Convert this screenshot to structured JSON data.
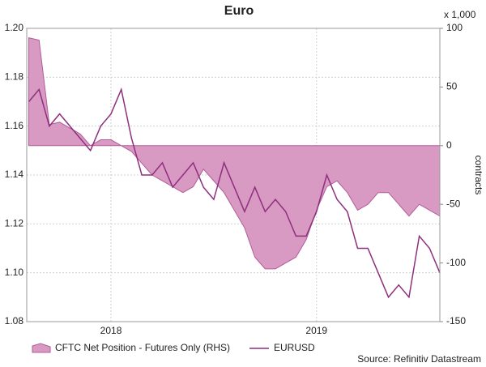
{
  "chart_data": {
    "type": "line",
    "title": "Euro",
    "y2_unit": "x 1,000",
    "y2label": "contracts",
    "source": "Source: Refinitiv Datastream",
    "x": [
      2017.6,
      2017.65,
      2017.7,
      2017.75,
      2017.8,
      2017.85,
      2017.9,
      2017.95,
      2018.0,
      2018.05,
      2018.1,
      2018.15,
      2018.2,
      2018.25,
      2018.3,
      2018.35,
      2018.4,
      2018.45,
      2018.5,
      2018.55,
      2018.6,
      2018.65,
      2018.7,
      2018.75,
      2018.8,
      2018.85,
      2018.9,
      2018.95,
      2019.0,
      2019.05,
      2019.1,
      2019.15,
      2019.2,
      2019.25,
      2019.3,
      2019.35,
      2019.4,
      2019.45,
      2019.5,
      2019.55,
      2019.6
    ],
    "xlim": [
      2017.59,
      2019.6
    ],
    "xticks": [
      2018,
      2019
    ],
    "ylim": [
      1.08,
      1.2
    ],
    "yticks": [
      {
        "value": 1.2,
        "label": "1.20"
      },
      1.18,
      1.16,
      1.14,
      1.12,
      {
        "value": 1.1,
        "label": "1.10"
      },
      1.08
    ],
    "y2lim": [
      -150,
      100
    ],
    "y2ticks": [
      100,
      50,
      0,
      -50,
      -100,
      -150
    ],
    "grid": true,
    "series": [
      {
        "name": "CFTC Net Position - Futures Only (RHS)",
        "color": "#d89ac3",
        "axis": "y2",
        "values": [
          92,
          90,
          18,
          20,
          15,
          10,
          0,
          5,
          5,
          0,
          -5,
          -15,
          -25,
          -30,
          -35,
          -40,
          -35,
          -20,
          -30,
          -40,
          -55,
          -70,
          -95,
          -105,
          -105,
          -100,
          -95,
          -80,
          -55,
          -35,
          -30,
          -40,
          -55,
          -50,
          -40,
          -40,
          -50,
          -60,
          -50,
          -55,
          -60
        ]
      },
      {
        "name": "EURUSD",
        "color": "#8e2f7e",
        "values": [
          1.17,
          1.175,
          1.16,
          1.165,
          1.16,
          1.155,
          1.15,
          1.16,
          1.165,
          1.175,
          1.155,
          1.14,
          1.14,
          1.145,
          1.135,
          1.14,
          1.145,
          1.135,
          1.13,
          1.145,
          1.135,
          1.125,
          1.135,
          1.125,
          1.13,
          1.125,
          1.115,
          1.115,
          1.125,
          1.14,
          1.13,
          1.125,
          1.11,
          1.11,
          1.1,
          1.09,
          1.095,
          1.09,
          1.115,
          1.11,
          1.1
        ]
      }
    ]
  }
}
